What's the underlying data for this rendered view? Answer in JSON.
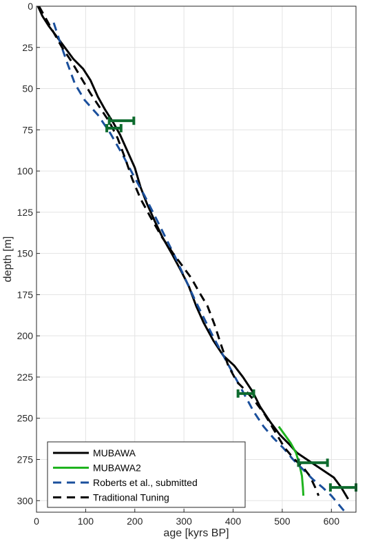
{
  "chart_data": {
    "type": "line",
    "xlabel": "age [kyrs BP]",
    "ylabel": "depth [m]",
    "xlim": [
      0,
      650
    ],
    "ylim": [
      0,
      307
    ],
    "y_reversed": true,
    "grid": true,
    "x_ticks": [
      0,
      100,
      200,
      300,
      400,
      500,
      600
    ],
    "y_ticks": [
      0,
      25,
      50,
      75,
      100,
      125,
      150,
      175,
      200,
      225,
      250,
      275,
      300
    ],
    "legend_position": "bottom-left",
    "series": [
      {
        "name": "MUBAWA",
        "color": "#000000",
        "style": "solid",
        "points": [
          [
            3,
            0
          ],
          [
            12,
            6
          ],
          [
            25,
            12
          ],
          [
            40,
            18
          ],
          [
            55,
            24
          ],
          [
            75,
            32
          ],
          [
            95,
            38
          ],
          [
            110,
            45
          ],
          [
            125,
            55
          ],
          [
            140,
            63
          ],
          [
            155,
            70
          ],
          [
            170,
            78
          ],
          [
            185,
            88
          ],
          [
            200,
            98
          ],
          [
            212,
            110
          ],
          [
            225,
            120
          ],
          [
            240,
            130
          ],
          [
            256,
            140
          ],
          [
            275,
            150
          ],
          [
            293,
            160
          ],
          [
            310,
            170
          ],
          [
            325,
            182
          ],
          [
            340,
            192
          ],
          [
            360,
            203
          ],
          [
            380,
            212
          ],
          [
            402,
            218
          ],
          [
            420,
            225
          ],
          [
            440,
            234
          ],
          [
            455,
            243
          ],
          [
            475,
            252
          ],
          [
            495,
            260
          ],
          [
            515,
            266
          ],
          [
            530,
            271
          ],
          [
            555,
            276
          ],
          [
            580,
            281
          ],
          [
            605,
            286
          ],
          [
            620,
            292
          ],
          [
            634,
            299
          ]
        ]
      },
      {
        "name": "MUBAWA2",
        "color": "#1eb31e",
        "style": "solid",
        "points": [
          [
            493,
            255
          ],
          [
            505,
            260
          ],
          [
            517,
            265
          ],
          [
            528,
            271
          ],
          [
            535,
            278
          ],
          [
            540,
            285
          ],
          [
            542,
            292
          ],
          [
            543,
            297
          ]
        ]
      },
      {
        "name": "Roberts et al., submitted",
        "color": "#1a4f9c",
        "style": "dashed",
        "points": [
          [
            35,
            10
          ],
          [
            48,
            22
          ],
          [
            62,
            34
          ],
          [
            78,
            47
          ],
          [
            98,
            57
          ],
          [
            125,
            66
          ],
          [
            150,
            77
          ],
          [
            175,
            90
          ],
          [
            198,
            103
          ],
          [
            220,
            115
          ],
          [
            242,
            128
          ],
          [
            262,
            140
          ],
          [
            282,
            152
          ],
          [
            302,
            165
          ],
          [
            322,
            178
          ],
          [
            342,
            190
          ],
          [
            362,
            202
          ],
          [
            382,
            213
          ],
          [
            402,
            224
          ],
          [
            422,
            235
          ],
          [
            442,
            246
          ],
          [
            462,
            255
          ],
          [
            482,
            262
          ],
          [
            502,
            268
          ],
          [
            522,
            275
          ],
          [
            542,
            281
          ],
          [
            562,
            287
          ],
          [
            582,
            292
          ],
          [
            600,
            297
          ],
          [
            628,
            307
          ]
        ]
      },
      {
        "name": "Traditional Tuning",
        "color": "#000000",
        "style": "dashed",
        "points": [
          [
            5,
            0
          ],
          [
            20,
            8
          ],
          [
            35,
            16
          ],
          [
            52,
            25
          ],
          [
            70,
            33
          ],
          [
            90,
            43
          ],
          [
            110,
            53
          ],
          [
            130,
            62
          ],
          [
            148,
            70
          ],
          [
            165,
            80
          ],
          [
            180,
            92
          ],
          [
            195,
            105
          ],
          [
            212,
            117
          ],
          [
            232,
            128
          ],
          [
            255,
            140
          ],
          [
            278,
            150
          ],
          [
            298,
            158
          ],
          [
            315,
            165
          ],
          [
            330,
            173
          ],
          [
            348,
            182
          ],
          [
            362,
            193
          ],
          [
            375,
            205
          ],
          [
            390,
            218
          ],
          [
            408,
            228
          ],
          [
            425,
            233
          ],
          [
            445,
            240
          ],
          [
            465,
            248
          ],
          [
            485,
            258
          ],
          [
            505,
            268
          ],
          [
            525,
            275
          ],
          [
            543,
            280
          ],
          [
            556,
            285
          ],
          [
            567,
            292
          ],
          [
            574,
            297
          ]
        ]
      }
    ],
    "error_bars": {
      "color": "#0e6b2e",
      "items": [
        {
          "y": 69.5,
          "x_low": 148,
          "x_high": 198
        },
        {
          "y": 74,
          "x_low": 143,
          "x_high": 172
        },
        {
          "y": 235,
          "x_low": 410,
          "x_high": 442
        },
        {
          "y": 277,
          "x_low": 533,
          "x_high": 592
        },
        {
          "y": 292,
          "x_low": 598,
          "x_high": 650
        }
      ]
    }
  }
}
